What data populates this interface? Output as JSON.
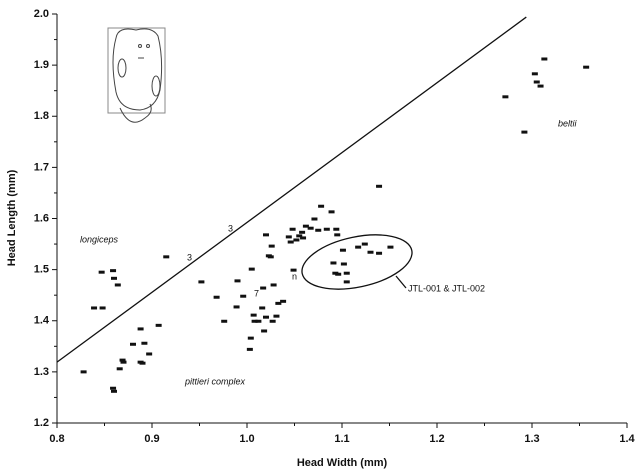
{
  "chart_data": {
    "type": "scatter",
    "x_label": "Head Width (mm)",
    "y_label": "Head Length (mm)",
    "xlim": [
      0.8,
      1.4
    ],
    "ylim": [
      1.2,
      2.0
    ],
    "xticks": [
      0.8,
      0.9,
      {
        "value": 1,
        "label": "1.0"
      },
      1.1,
      1.2,
      1.3,
      1.4
    ],
    "yticks": [
      1.2,
      1.3,
      1.4,
      1.5,
      1.6,
      1.7,
      1.8,
      1.9,
      {
        "value": 2,
        "label": "2.0"
      }
    ],
    "color": "#111111",
    "x": [
      0.828,
      0.839,
      0.848,
      0.847,
      0.859,
      0.86,
      0.864,
      0.859,
      0.86,
      0.866,
      0.869,
      0.87,
      0.88,
      0.888,
      0.89,
      0.888,
      0.892,
      0.897,
      0.907,
      0.915,
      0.952,
      0.968,
      0.976,
      0.989,
      0.99,
      0.996,
      1.003,
      1.004,
      1.005,
      1.007,
      1.008,
      1.012,
      1.016,
      1.017,
      1.018,
      1.02,
      1.023,
      1.025,
      1.027,
      1.028,
      1.02,
      1.026,
      1.031,
      1.033,
      1.038,
      1.044,
      1.046,
      1.048,
      1.049,
      1.052,
      1.055,
      1.058,
      1.059,
      1.062,
      1.067,
      1.071,
      1.075,
      1.078,
      1.084,
      1.089,
      1.094,
      1.095,
      1.091,
      1.093,
      1.096,
      1.101,
      1.102,
      1.105,
      1.105,
      1.117,
      1.124,
      1.13,
      1.139,
      1.151,
      1.139,
      1.272,
      1.292,
      1.303,
      1.305,
      1.309,
      1.313,
      1.357
    ],
    "values": [
      1.3,
      1.425,
      1.425,
      1.495,
      1.498,
      1.483,
      1.47,
      1.268,
      1.262,
      1.306,
      1.323,
      1.319,
      1.354,
      1.319,
      1.317,
      1.384,
      1.356,
      1.335,
      1.391,
      1.525,
      1.476,
      1.446,
      1.399,
      1.427,
      1.478,
      1.448,
      1.344,
      1.366,
      1.501,
      1.411,
      1.399,
      1.399,
      1.425,
      1.464,
      1.38,
      1.407,
      1.527,
      1.525,
      1.399,
      1.47,
      1.568,
      1.546,
      1.409,
      1.434,
      1.438,
      1.564,
      1.554,
      1.579,
      1.499,
      1.558,
      1.566,
      1.573,
      1.562,
      1.585,
      1.581,
      1.599,
      1.577,
      1.624,
      1.579,
      1.613,
      1.579,
      1.568,
      1.513,
      1.493,
      1.491,
      1.538,
      1.511,
      1.493,
      1.476,
      1.544,
      1.55,
      1.534,
      1.532,
      1.544,
      1.663,
      1.838,
      1.769,
      1.883,
      1.867,
      1.859,
      1.912,
      1.896
    ],
    "reference_line": {
      "x": [
        0.8,
        1.294
      ],
      "y": [
        1.319,
        1.994
      ]
    },
    "annotations": [
      "longiceps",
      "3",
      "3",
      "7",
      "n",
      "pittieri complex",
      "beltii",
      "JTL-001 & JTL-002"
    ]
  }
}
